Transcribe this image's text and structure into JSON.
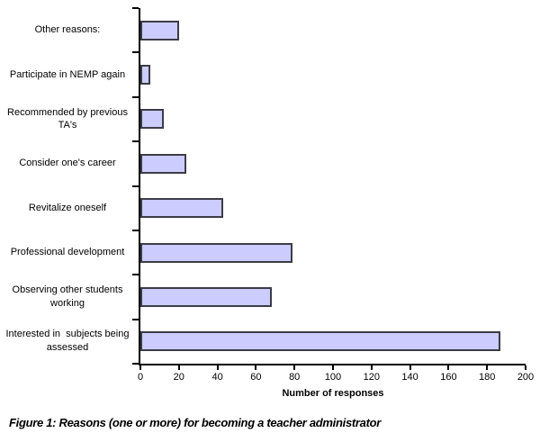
{
  "figure": {
    "caption": "Figure 1: Reasons (one or more) for becoming a teacher administrator"
  },
  "chart_data": {
    "type": "bar",
    "orientation": "horizontal",
    "title": "",
    "xlabel": "Number of responses",
    "ylabel": "",
    "xlim": [
      0,
      200
    ],
    "xticks": [
      0,
      20,
      40,
      60,
      80,
      100,
      120,
      140,
      160,
      180,
      200
    ],
    "grid": false,
    "legend": false,
    "categories": [
      "Other reasons:",
      "Participate in NEMP again",
      "Recommended by previous\nTA's",
      "Consider one's career",
      "Revitalize oneself",
      "Professional development",
      "Observing other students\nworking",
      "Interested in  subjects being\nassessed"
    ],
    "values": [
      20,
      5,
      12,
      24,
      43,
      79,
      68,
      187
    ],
    "bar_fill_color": "#ccccff",
    "bar_border_color": "#3c3c46",
    "axis_color": "#000000"
  }
}
